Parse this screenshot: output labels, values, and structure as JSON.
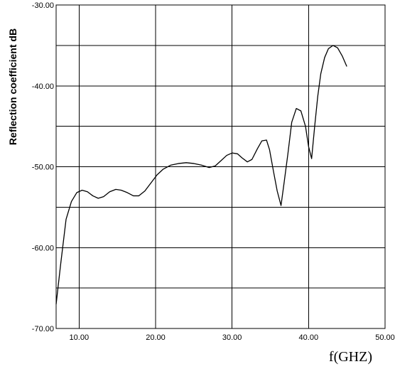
{
  "chart_data": {
    "type": "line",
    "title": "",
    "xlabel": "f(GHZ)",
    "ylabel": "Reflection coefficient dB",
    "xlim": [
      7,
      50
    ],
    "ylim": [
      -70,
      -30
    ],
    "x_ticks": [
      10,
      20,
      30,
      40,
      50
    ],
    "x_tick_labels": [
      "10.00",
      "20.00",
      "30.00",
      "40.00",
      "50.00"
    ],
    "y_ticks": [
      -30,
      -40,
      -50,
      -60,
      -70
    ],
    "y_tick_labels": [
      "-30.00",
      "-40.00",
      "-50.00",
      "-60.00",
      "-70.00"
    ],
    "y_minor_step": 5,
    "grid": true,
    "legend": "none",
    "series": [
      {
        "x": [
          7.0,
          7.6,
          8.3,
          9.0,
          9.7,
          10.4,
          11.1,
          11.8,
          12.5,
          13.2,
          14.0,
          14.8,
          15.5,
          16.3,
          17.1,
          17.8,
          18.6,
          19.4,
          20.2,
          21.0,
          22.0,
          23.0,
          24.0,
          25.0,
          26.0,
          27.0,
          27.8,
          28.5,
          29.3,
          30.0,
          30.7,
          31.3,
          32.0,
          32.6,
          33.3,
          33.9,
          34.5,
          34.9,
          35.4,
          35.9,
          36.4,
          36.8,
          37.3,
          37.8,
          38.4,
          39.0,
          39.6,
          40.0,
          40.4,
          40.8,
          41.2,
          41.6,
          42.1,
          42.6,
          43.2,
          43.8,
          44.4,
          45.0
        ],
        "y": [
          -67.0,
          -62.0,
          -56.5,
          -54.3,
          -53.2,
          -52.9,
          -53.1,
          -53.6,
          -53.9,
          -53.7,
          -53.1,
          -52.8,
          -52.9,
          -53.2,
          -53.6,
          -53.6,
          -53.0,
          -52.0,
          -51.0,
          -50.3,
          -49.8,
          -49.6,
          -49.5,
          -49.6,
          -49.8,
          -50.1,
          -49.9,
          -49.3,
          -48.6,
          -48.3,
          -48.4,
          -48.9,
          -49.4,
          -49.1,
          -47.8,
          -46.8,
          -46.7,
          -47.9,
          -50.5,
          -53.0,
          -54.8,
          -52.0,
          -48.4,
          -44.5,
          -42.8,
          -43.1,
          -45.0,
          -47.5,
          -49.0,
          -45.0,
          -41.3,
          -38.5,
          -36.5,
          -35.4,
          -35.0,
          -35.3,
          -36.3,
          -37.6
        ]
      }
    ]
  }
}
